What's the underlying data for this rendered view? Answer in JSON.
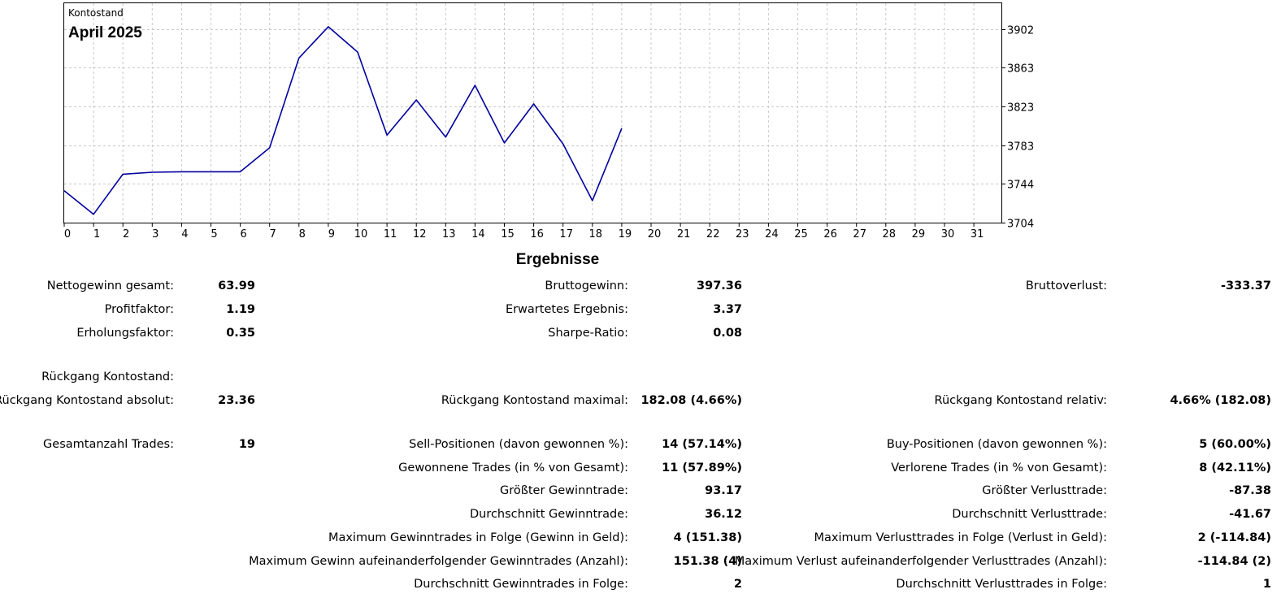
{
  "chart_data": {
    "type": "line",
    "caption": "Kontostand",
    "title": "April 2025",
    "x": [
      0,
      1,
      2,
      3,
      4,
      5,
      6,
      7,
      8,
      9,
      10,
      11,
      12,
      13,
      14,
      15,
      16,
      17,
      18,
      19
    ],
    "series": [
      {
        "values": [
          3737,
          3713,
          3754,
          3756,
          3756.5,
          3756.5,
          3756.5,
          3781,
          3873,
          3905,
          3879,
          3794,
          3830,
          3792,
          3845,
          3786,
          3826,
          3785,
          3727,
          3801
        ]
      }
    ],
    "x_ticks": [
      "0",
      "1",
      "2",
      "3",
      "4",
      "5",
      "6",
      "7",
      "8",
      "9",
      "10",
      "11",
      "12",
      "13",
      "14",
      "15",
      "16",
      "17",
      "18",
      "19",
      "20",
      "21",
      "22",
      "23",
      "24",
      "25",
      "26",
      "27",
      "28",
      "29",
      "30",
      "31"
    ],
    "y_ticks": [
      3704,
      3744,
      3783,
      3823,
      3863,
      3902
    ],
    "xlim": [
      0,
      32
    ],
    "ylim": [
      3704,
      3925
    ],
    "y_axis_position": "right",
    "grid": true,
    "line_color": "#0000a0",
    "grid_color": "#c8c8c8"
  },
  "results": {
    "title": "Ergebnisse",
    "stats": [
      {
        "label": "Nettogewinn gesamt:",
        "value": "63.99"
      },
      {
        "label": "Bruttogewinn:",
        "value": "397.36"
      },
      {
        "label": "Bruttoverlust:",
        "value": "-333.37"
      },
      {
        "label": "Profitfaktor:",
        "value": "1.19"
      },
      {
        "label": "Erwartetes Ergebnis:",
        "value": "3.37"
      },
      {
        "label": "Erholungsfaktor:",
        "value": "0.35"
      },
      {
        "label": "Sharpe-Ratio:",
        "value": "0.08"
      },
      {
        "label": "Rückgang Kontostand:",
        "value": ""
      },
      {
        "label": "Rückgang Kontostand absolut:",
        "value": "23.36"
      },
      {
        "label": "Rückgang Kontostand maximal:",
        "value": "182.08 (4.66%)"
      },
      {
        "label": "Rückgang Kontostand relativ:",
        "value": "4.66% (182.08)"
      },
      {
        "label": "Gesamtanzahl Trades:",
        "value": "19"
      },
      {
        "label": "Sell-Positionen (davon gewonnen %):",
        "value": "14 (57.14%)"
      },
      {
        "label": "Buy-Positionen (davon gewonnen %):",
        "value": "5 (60.00%)"
      },
      {
        "label": "Gewonnene Trades (in % von Gesamt):",
        "value": "11 (57.89%)"
      },
      {
        "label": "Verlorene Trades (in % von Gesamt):",
        "value": "8 (42.11%)"
      },
      {
        "label": "Größter Gewinntrade:",
        "value": "93.17"
      },
      {
        "label": "Größter Verlusttrade:",
        "value": "-87.38"
      },
      {
        "label": "Durchschnitt Gewinntrade:",
        "value": "36.12"
      },
      {
        "label": "Durchschnitt Verlusttrade:",
        "value": "-41.67"
      },
      {
        "label": "Maximum Gewinntrades in Folge (Gewinn in Geld):",
        "value": "4 (151.38)"
      },
      {
        "label": "Maximum Verlusttrades in Folge (Verlust in Geld):",
        "value": "2 (-114.84)"
      },
      {
        "label": "Maximum Gewinn aufeinanderfolgender Gewinntrades (Anzahl):",
        "value": "151.38 (4)"
      },
      {
        "label": "Maximum Verlust aufeinanderfolgender Verlusttrades (Anzahl):",
        "value": "-114.84 (2)"
      },
      {
        "label": "Durchschnitt Gewinntrades in Folge:",
        "value": "2"
      },
      {
        "label": "Durchschnitt Verlusttrades in Folge:",
        "value": "1"
      }
    ]
  }
}
